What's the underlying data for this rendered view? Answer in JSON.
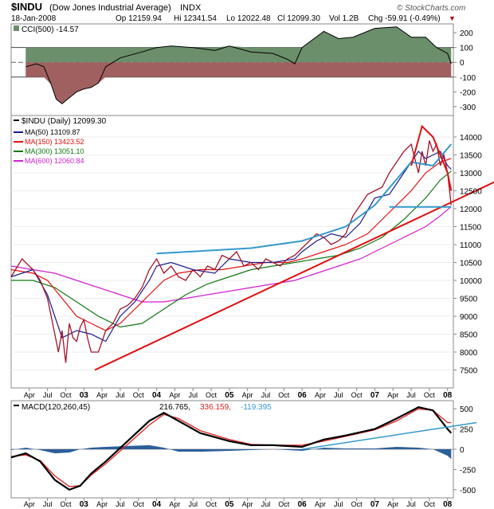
{
  "header": {
    "symbol": "$INDU",
    "name": "(Dow Jones Industrial Average)",
    "exchange": "INDX",
    "date": "18-Jan-2008",
    "op": "Op 12159.94",
    "hi": "Hi 12341.54",
    "lo": "Lo 12022.48",
    "cl": "Cl 12099.30",
    "vol": "Vol 1.2B",
    "chg": "Chg -59.91 (-0.49%)",
    "chg_arrow": "▼",
    "watermark": "© StockCharts.com"
  },
  "colors": {
    "price": "#a0152a",
    "ma50": "#1a1a8c",
    "ma150": "#e01010",
    "ma300": "#117711",
    "ma600": "#d01fd0",
    "trend_red": "#dd1111",
    "trend_blue": "#3399cc",
    "cci_pos": "#6b8f6b",
    "cci_neg": "#a06060",
    "macd": "#000000",
    "signal": "#e02020",
    "hist": "#2b5f9a"
  },
  "legend": {
    "cci": "CCI(500) -14.57",
    "price": "$INDU (Daily) 12099.30",
    "ma50": "MA(50) 13109.87",
    "ma150": "MA(150) 13423.52",
    "ma300": "MA(300) 13051.10",
    "ma600": "MA(600) 12060.84",
    "macd_label": "MACD(120,260,45)",
    "macd_v": "216.765,",
    "signal_v": "336.159,",
    "hist_v": "-119.395"
  },
  "chart_data": [
    {
      "type": "area",
      "name": "CCI(500)",
      "yticks": [
        200,
        100,
        0,
        -100,
        -200,
        -300
      ],
      "ylim": [
        -360,
        260
      ],
      "x": [
        2002.2,
        2002.35,
        2002.45,
        2002.55,
        2002.62,
        2002.7,
        2002.8,
        2002.9,
        2003.0,
        2003.1,
        2003.2,
        2003.3,
        2003.5,
        2003.8,
        2004.0,
        2004.2,
        2004.5,
        2004.8,
        2005.0,
        2005.3,
        2005.6,
        2005.8,
        2005.9,
        2006.0,
        2006.3,
        2006.5,
        2006.7,
        2007.0,
        2007.3,
        2007.5,
        2007.7,
        2007.85,
        2008.0,
        2008.05
      ],
      "values": [
        -30,
        -10,
        -30,
        -150,
        -250,
        -280,
        -240,
        -200,
        -180,
        -170,
        -140,
        -30,
        30,
        70,
        100,
        110,
        100,
        80,
        110,
        70,
        60,
        20,
        -10,
        100,
        210,
        160,
        170,
        230,
        240,
        170,
        170,
        100,
        60,
        -10
      ]
    },
    {
      "type": "line",
      "ylim": [
        7000,
        14600
      ],
      "yticks": [
        14000,
        13500,
        13000,
        12500,
        12000,
        11500,
        11000,
        10500,
        10000,
        9500,
        9000,
        8500,
        8000,
        7500
      ],
      "xticks": [
        "Apr",
        "Jul",
        "Oct",
        "03",
        "Apr",
        "Jul",
        "Oct",
        "04",
        "Apr",
        "Jul",
        "Oct",
        "05",
        "Apr",
        "Jul",
        "Oct",
        "06",
        "Apr",
        "Jul",
        "Oct",
        "07",
        "Apr",
        "Jul",
        "Oct",
        "08"
      ],
      "series": [
        {
          "name": "$INDU",
          "x": [
            2002.0,
            2002.15,
            2002.3,
            2002.4,
            2002.5,
            2002.55,
            2002.6,
            2002.65,
            2002.7,
            2002.75,
            2002.8,
            2002.85,
            2002.9,
            2002.95,
            2003.0,
            2003.05,
            2003.1,
            2003.2,
            2003.3,
            2003.4,
            2003.5,
            2003.6,
            2003.7,
            2003.8,
            2003.9,
            2004.0,
            2004.1,
            2004.2,
            2004.3,
            2004.4,
            2004.5,
            2004.6,
            2004.7,
            2004.8,
            2004.9,
            2005.0,
            2005.1,
            2005.2,
            2005.3,
            2005.4,
            2005.5,
            2005.6,
            2005.7,
            2005.8,
            2005.9,
            2006.0,
            2006.1,
            2006.2,
            2006.3,
            2006.4,
            2006.5,
            2006.6,
            2006.7,
            2006.8,
            2006.9,
            2007.0,
            2007.1,
            2007.2,
            2007.3,
            2007.4,
            2007.5,
            2007.55,
            2007.6,
            2007.65,
            2007.7,
            2007.75,
            2007.8,
            2007.85,
            2007.9,
            2007.95,
            2008.0,
            2008.05
          ],
          "values": [
            10100,
            10600,
            10300,
            10000,
            9500,
            9000,
            8500,
            8000,
            8600,
            7700,
            8800,
            8400,
            8300,
            8700,
            8900,
            8400,
            8000,
            8000,
            8600,
            8800,
            9200,
            9300,
            9500,
            9800,
            10300,
            10600,
            10200,
            10400,
            10100,
            10000,
            10300,
            10100,
            10400,
            10300,
            10700,
            10600,
            10800,
            10400,
            10500,
            10300,
            10600,
            10500,
            10400,
            10600,
            10700,
            10900,
            11100,
            11300,
            11200,
            11000,
            11100,
            11300,
            11800,
            12100,
            12400,
            12500,
            12600,
            13000,
            13300,
            13600,
            13800,
            13400,
            13000,
            13600,
            13200,
            13900,
            13600,
            13800,
            13200,
            13500,
            13000,
            12100
          ]
        },
        {
          "name": "MA(50)",
          "x": [
            2002.0,
            2002.3,
            2002.5,
            2002.7,
            2002.9,
            2003.1,
            2003.3,
            2003.5,
            2003.7,
            2003.9,
            2004.0,
            2004.2,
            2004.5,
            2004.8,
            2005.0,
            2005.3,
            2005.6,
            2005.9,
            2006.0,
            2006.2,
            2006.4,
            2006.6,
            2006.8,
            2007.0,
            2007.2,
            2007.4,
            2007.6,
            2007.7,
            2007.8,
            2007.9,
            2008.0,
            2008.05
          ],
          "values": [
            10100,
            10300,
            9600,
            8400,
            8600,
            8500,
            8300,
            9000,
            9400,
            10000,
            10400,
            10500,
            10300,
            10200,
            10600,
            10500,
            10500,
            10600,
            10800,
            11100,
            11300,
            11200,
            11600,
            12300,
            12400,
            13000,
            13600,
            13400,
            13500,
            13600,
            13200,
            13100
          ]
        },
        {
          "name": "MA(150)",
          "x": [
            2002.0,
            2002.3,
            2002.5,
            2002.7,
            2002.9,
            2003.1,
            2003.3,
            2003.5,
            2003.7,
            2003.9,
            2004.1,
            2004.3,
            2004.6,
            2004.9,
            2005.2,
            2005.5,
            2005.8,
            2006.0,
            2006.3,
            2006.6,
            2006.9,
            2007.2,
            2007.5,
            2007.7,
            2007.9,
            2008.05
          ],
          "values": [
            10300,
            10200,
            10000,
            9500,
            9000,
            8800,
            8600,
            8800,
            9200,
            9600,
            10000,
            10200,
            10300,
            10300,
            10400,
            10500,
            10500,
            10600,
            10800,
            11000,
            11300,
            11900,
            12500,
            13000,
            13300,
            13400
          ]
        },
        {
          "name": "MA(300)",
          "x": [
            2002.0,
            2002.3,
            2002.6,
            2002.9,
            2003.2,
            2003.5,
            2003.8,
            2004.1,
            2004.4,
            2004.7,
            2005.0,
            2005.3,
            2005.6,
            2005.9,
            2006.2,
            2006.5,
            2006.8,
            2007.1,
            2007.4,
            2007.7,
            2007.9,
            2008.05
          ],
          "values": [
            10000,
            10000,
            9800,
            9400,
            9000,
            8700,
            8800,
            9200,
            9600,
            9900,
            10100,
            10300,
            10400,
            10500,
            10600,
            10700,
            10900,
            11200,
            11700,
            12300,
            12800,
            13050
          ]
        },
        {
          "name": "MA(600)",
          "x": [
            2002.0,
            2002.3,
            2002.6,
            2002.9,
            2003.2,
            2003.5,
            2003.8,
            2004.1,
            2004.4,
            2004.7,
            2005.0,
            2005.3,
            2005.6,
            2005.9,
            2006.2,
            2006.5,
            2006.8,
            2007.1,
            2007.4,
            2007.7,
            2007.9,
            2008.05
          ],
          "values": [
            10400,
            10300,
            10200,
            10000,
            9800,
            9600,
            9400,
            9400,
            9500,
            9600,
            9700,
            9800,
            9900,
            10000,
            10200,
            10400,
            10600,
            10900,
            11200,
            11500,
            11800,
            12060
          ]
        }
      ],
      "trendlines": [
        {
          "color": "trend_red",
          "x": [
            2003.15,
            2008.65
          ],
          "values": [
            7500,
            12750
          ]
        },
        {
          "color": "trend_blue",
          "x": [
            2004.0,
            2005.3,
            2006.0,
            2006.6,
            2007.0,
            2007.5,
            2007.8,
            2008.05
          ],
          "values": [
            10750,
            10900,
            11100,
            11500,
            12100,
            13300,
            13200,
            13800
          ]
        },
        {
          "color": "trend_blue",
          "x": [
            2007.2,
            2008.05
          ],
          "values": [
            12050,
            12050
          ]
        },
        {
          "color": "trend_red",
          "x": [
            2007.5,
            2007.65,
            2007.8,
            2007.9,
            2008.0,
            2008.05
          ],
          "values": [
            13200,
            14300,
            14000,
            13500,
            13000,
            12500
          ]
        }
      ]
    },
    {
      "type": "line",
      "name": "MACD",
      "yticks": [
        500,
        250,
        0,
        -250,
        -500
      ],
      "ylim": [
        -600,
        600
      ],
      "series": [
        {
          "name": "MACD",
          "x": [
            2002.0,
            2002.2,
            2002.4,
            2002.6,
            2002.8,
            2002.95,
            2003.1,
            2003.3,
            2003.6,
            2003.9,
            2004.1,
            2004.3,
            2004.6,
            2005.0,
            2005.3,
            2005.6,
            2006.0,
            2006.3,
            2006.6,
            2007.0,
            2007.3,
            2007.6,
            2007.8,
            2008.0,
            2008.05
          ],
          "values": [
            -100,
            -50,
            -150,
            -380,
            -500,
            -450,
            -300,
            -150,
            100,
            350,
            450,
            350,
            200,
            100,
            50,
            50,
            30,
            120,
            170,
            250,
            380,
            520,
            480,
            250,
            200
          ]
        },
        {
          "name": "Signal",
          "x": [
            2002.0,
            2002.2,
            2002.4,
            2002.6,
            2002.8,
            2002.95,
            2003.1,
            2003.3,
            2003.6,
            2003.9,
            2004.1,
            2004.3,
            2004.6,
            2005.0,
            2005.3,
            2005.6,
            2006.0,
            2006.3,
            2006.6,
            2007.0,
            2007.3,
            2007.6,
            2007.8,
            2008.0,
            2008.05
          ],
          "values": [
            -90,
            -70,
            -140,
            -330,
            -460,
            -450,
            -320,
            -180,
            60,
            300,
            430,
            380,
            230,
            120,
            60,
            50,
            50,
            100,
            160,
            240,
            350,
            500,
            480,
            330,
            330
          ]
        },
        {
          "name": "Histogram",
          "x": [
            2002.0,
            2002.2,
            2002.4,
            2002.6,
            2002.8,
            2002.95,
            2003.1,
            2003.3,
            2003.6,
            2003.9,
            2004.1,
            2004.3,
            2004.6,
            2005.0,
            2005.3,
            2005.6,
            2006.0,
            2006.3,
            2006.6,
            2007.0,
            2007.3,
            2007.6,
            2007.8,
            2008.0,
            2008.05
          ],
          "values": [
            -10,
            20,
            -10,
            -50,
            -40,
            0,
            20,
            30,
            40,
            50,
            20,
            -30,
            -30,
            -20,
            -10,
            0,
            -20,
            20,
            10,
            10,
            30,
            20,
            0,
            -80,
            -120
          ]
        }
      ],
      "trendlines": [
        {
          "color": "trend_blue",
          "x": [
            2006.0,
            2008.4
          ],
          "values": [
            0,
            330
          ]
        }
      ]
    }
  ]
}
